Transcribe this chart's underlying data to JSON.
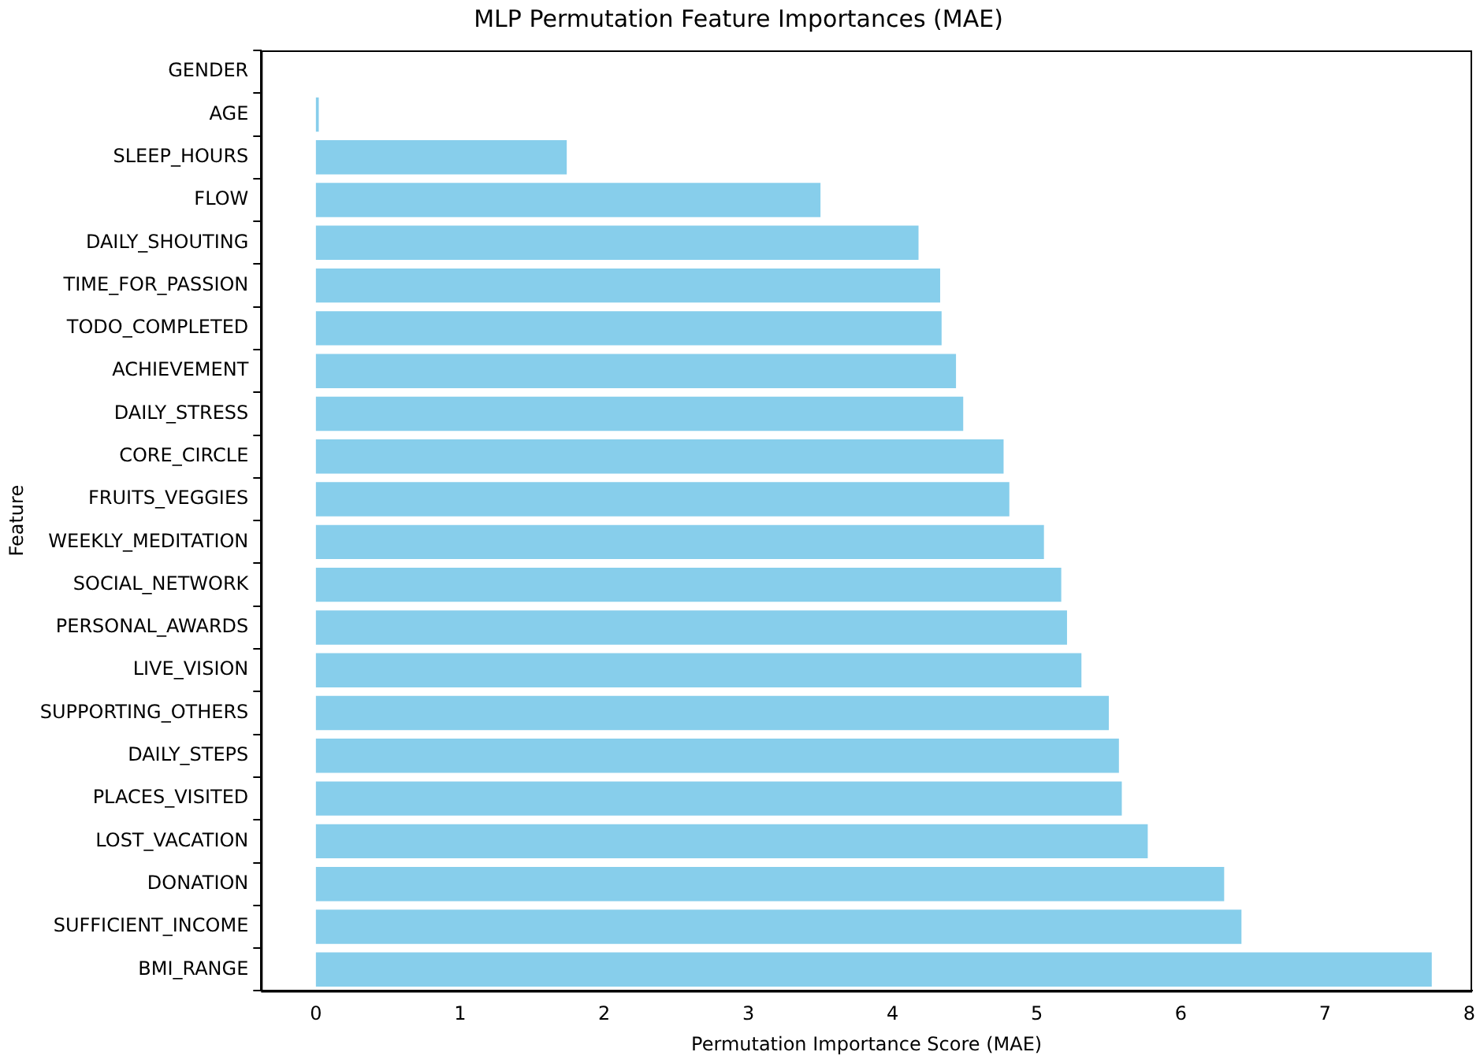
{
  "chart_data": {
    "type": "bar",
    "orientation": "horizontal",
    "title": "MLP Permutation Feature Importances (MAE)",
    "xlabel": "Permutation Importance Score (MAE)",
    "ylabel": "Feature",
    "categories": [
      "GENDER",
      "AGE",
      "SLEEP_HOURS",
      "FLOW",
      "DAILY_SHOUTING",
      "TIME_FOR_PASSION",
      "TODO_COMPLETED",
      "ACHIEVEMENT",
      "DAILY_STRESS",
      "CORE_CIRCLE",
      "FRUITS_VEGGIES",
      "WEEKLY_MEDITATION",
      "SOCIAL_NETWORK",
      "PERSONAL_AWARDS",
      "LIVE_VISION",
      "SUPPORTING_OTHERS",
      "DAILY_STEPS",
      "PLACES_VISITED",
      "LOST_VACATION",
      "DONATION",
      "SUFFICIENT_INCOME",
      "BMI_RANGE"
    ],
    "values": [
      0,
      0.02,
      1.74,
      3.5,
      4.18,
      4.33,
      4.34,
      4.44,
      4.49,
      4.77,
      4.81,
      5.05,
      5.17,
      5.21,
      5.31,
      5.5,
      5.57,
      5.59,
      5.77,
      6.3,
      6.42,
      7.74
    ],
    "color": "#87ceeb",
    "xlim": [
      -0.38,
      8.02
    ],
    "xticks": [
      0,
      1,
      2,
      3,
      4,
      5,
      6,
      7,
      8
    ],
    "grid": false,
    "legend": false
  }
}
